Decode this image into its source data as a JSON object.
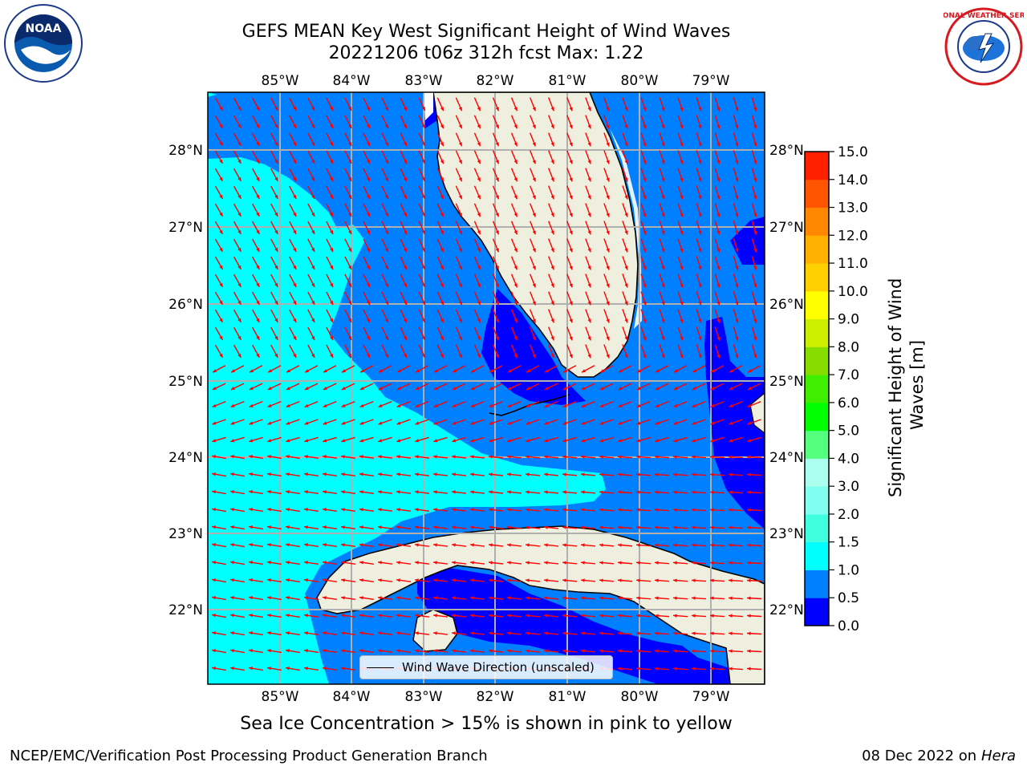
{
  "header": {
    "title_line1": "GEFS MEAN Key West Significant Height of Wind Waves",
    "title_line2": "20221206 t06z 312h fcst   Max: 1.22"
  },
  "logos": {
    "left": "NOAA",
    "right": "NATIONAL WEATHER SERVICE"
  },
  "map": {
    "lon_labels": [
      "85°W",
      "84°W",
      "83°W",
      "82°W",
      "81°W",
      "80°W",
      "79°W"
    ],
    "lat_labels": [
      "28°N",
      "27°N",
      "26°N",
      "25°N",
      "24°N",
      "23°N",
      "22°N"
    ],
    "legend_text": "Wind Wave Direction (unscaled)",
    "arrow_color": "#ff0000",
    "land_color": "#efefdf"
  },
  "colorbar": {
    "ticks": [
      "0.0",
      "0.5",
      "1.0",
      "1.5",
      "2.0",
      "3.0",
      "4.0",
      "5.0",
      "6.0",
      "7.0",
      "8.0",
      "9.0",
      "10.0",
      "11.0",
      "12.0",
      "13.0",
      "14.0",
      "15.0"
    ],
    "colors": [
      "#0000ff",
      "#0080ff",
      "#00ffff",
      "#40ffe0",
      "#80fff0",
      "#aaffee",
      "#55ff80",
      "#00ff00",
      "#40ee00",
      "#88dd00",
      "#ccee00",
      "#ffff00",
      "#ffd000",
      "#ffb000",
      "#ff8800",
      "#ff5500",
      "#ff2000"
    ],
    "title": "Significant Height of Wind Waves [m]"
  },
  "footer": {
    "note": "Sea Ice Concentration > 15% is shown in pink to yellow",
    "left": "NCEP/EMC/Verification Post Processing Product Generation Branch",
    "right_date": "08 Dec 2022 on",
    "right_host": "Hera"
  }
}
